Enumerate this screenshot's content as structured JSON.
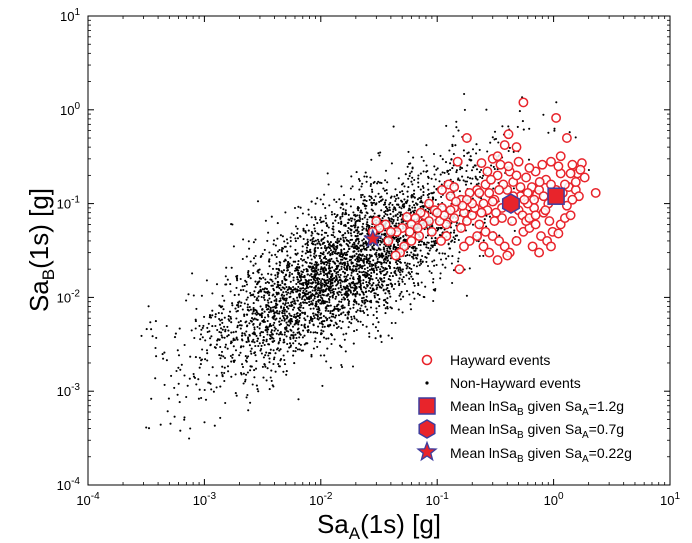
{
  "chart_data": {
    "type": "scatter",
    "x_scale": "log",
    "y_scale": "log",
    "xlim": [
      0.0001,
      10
    ],
    "ylim": [
      0.0001,
      10
    ],
    "x_ticks": [
      {
        "value": 0.0001,
        "base": "10",
        "exp": "-4"
      },
      {
        "value": 0.001,
        "base": "10",
        "exp": "-3"
      },
      {
        "value": 0.01,
        "base": "10",
        "exp": "-2"
      },
      {
        "value": 0.1,
        "base": "10",
        "exp": "-1"
      },
      {
        "value": 1,
        "base": "10",
        "exp": "0"
      },
      {
        "value": 10,
        "base": "10",
        "exp": "1"
      }
    ],
    "y_ticks": [
      {
        "value": 0.0001,
        "base": "10",
        "exp": "-4"
      },
      {
        "value": 0.001,
        "base": "10",
        "exp": "-3"
      },
      {
        "value": 0.01,
        "base": "10",
        "exp": "-2"
      },
      {
        "value": 0.1,
        "base": "10",
        "exp": "-1"
      },
      {
        "value": 1,
        "base": "10",
        "exp": "0"
      },
      {
        "value": 10,
        "base": "10",
        "exp": "1"
      }
    ],
    "xlabel": {
      "main": "Sa",
      "sub": "A",
      "rest": "(1s) [g]"
    },
    "ylabel": {
      "main": "Sa",
      "sub": "B",
      "rest": "(1s) [g]"
    },
    "grid": false,
    "legend_position": "bottom-right",
    "series": [
      {
        "name": "Hayward events",
        "marker": "open-circle",
        "color": "#e8242b",
        "points": [
          [
            0.55,
            1.2
          ],
          [
            0.41,
            0.55
          ],
          [
            0.38,
            0.42
          ],
          [
            0.3,
            0.3
          ],
          [
            0.33,
            0.32
          ],
          [
            1.05,
            0.82
          ],
          [
            1.3,
            0.5
          ],
          [
            0.18,
            0.5
          ],
          [
            0.24,
            0.27
          ],
          [
            0.48,
            0.4
          ],
          [
            0.15,
            0.28
          ],
          [
            0.33,
            0.2
          ],
          [
            0.45,
            0.17
          ],
          [
            0.58,
            0.19
          ],
          [
            0.7,
            0.22
          ],
          [
            0.86,
            0.18
          ],
          [
            1.15,
            0.21
          ],
          [
            1.45,
            0.26
          ],
          [
            1.75,
            0.27
          ],
          [
            2.3,
            0.13
          ],
          [
            0.26,
            0.16
          ],
          [
            0.22,
            0.14
          ],
          [
            0.19,
            0.13
          ],
          [
            0.16,
            0.11
          ],
          [
            0.13,
            0.12
          ],
          [
            0.11,
            0.09
          ],
          [
            0.095,
            0.085
          ],
          [
            0.085,
            0.1
          ],
          [
            0.078,
            0.075
          ],
          [
            0.072,
            0.08
          ],
          [
            0.065,
            0.07
          ],
          [
            0.06,
            0.06
          ],
          [
            0.055,
            0.072
          ],
          [
            0.05,
            0.055
          ],
          [
            0.045,
            0.05
          ],
          [
            0.04,
            0.05
          ],
          [
            0.036,
            0.06
          ],
          [
            0.032,
            0.055
          ],
          [
            0.03,
            0.065
          ],
          [
            0.028,
            0.05
          ],
          [
            0.12,
            0.06
          ],
          [
            0.14,
            0.07
          ],
          [
            0.16,
            0.055
          ],
          [
            0.18,
            0.065
          ],
          [
            0.2,
            0.075
          ],
          [
            0.23,
            0.06
          ],
          [
            0.26,
            0.05
          ],
          [
            0.3,
            0.045
          ],
          [
            0.34,
            0.04
          ],
          [
            0.38,
            0.035
          ],
          [
            0.42,
            0.03
          ],
          [
            0.33,
            0.025
          ],
          [
            0.28,
            0.03
          ],
          [
            0.4,
            0.028
          ],
          [
            0.48,
            0.04
          ],
          [
            0.55,
            0.05
          ],
          [
            0.62,
            0.055
          ],
          [
            0.7,
            0.06
          ],
          [
            0.78,
            0.045
          ],
          [
            0.88,
            0.04
          ],
          [
            0.98,
            0.05
          ],
          [
            1.1,
            0.048
          ],
          [
            0.92,
            0.065
          ],
          [
            0.82,
            0.08
          ],
          [
            0.68,
            0.09
          ],
          [
            0.6,
            0.1
          ],
          [
            0.52,
            0.12
          ],
          [
            0.36,
            0.09
          ],
          [
            0.31,
            0.11
          ],
          [
            0.28,
            0.13
          ],
          [
            0.25,
            0.1
          ],
          [
            0.21,
            0.09
          ],
          [
            0.17,
            0.08
          ],
          [
            0.14,
            0.09
          ],
          [
            0.105,
            0.065
          ],
          [
            0.09,
            0.05
          ],
          [
            0.07,
            0.045
          ],
          [
            0.06,
            0.04
          ],
          [
            0.052,
            0.035
          ],
          [
            0.048,
            0.03
          ],
          [
            0.044,
            0.028
          ],
          [
            0.155,
            0.02
          ],
          [
            0.72,
            0.125
          ],
          [
            0.65,
            0.15
          ],
          [
            0.75,
            0.14
          ],
          [
            0.82,
            0.12
          ],
          [
            0.9,
            0.1
          ],
          [
            1.0,
            0.11
          ],
          [
            1.2,
            0.13
          ],
          [
            1.35,
            0.15
          ],
          [
            1.55,
            0.14
          ],
          [
            1.65,
            0.12
          ],
          [
            1.3,
            0.095
          ],
          [
            1.45,
            0.11
          ],
          [
            1.55,
            0.17
          ],
          [
            1.25,
            0.16
          ],
          [
            1.05,
            0.14
          ],
          [
            0.95,
            0.16
          ],
          [
            0.76,
            0.17
          ],
          [
            1.6,
            0.21
          ],
          [
            1.85,
            0.19
          ],
          [
            1.7,
            0.23
          ],
          [
            0.42,
            0.22
          ],
          [
            0.4,
            0.14
          ],
          [
            0.37,
            0.16
          ],
          [
            0.46,
            0.1
          ],
          [
            0.5,
            0.085
          ],
          [
            0.54,
            0.075
          ],
          [
            0.58,
            0.065
          ],
          [
            0.62,
            0.07
          ],
          [
            0.44,
            0.065
          ],
          [
            0.36,
            0.07
          ],
          [
            0.32,
            0.08
          ],
          [
            0.27,
            0.085
          ],
          [
            0.24,
            0.08
          ],
          [
            0.2,
            0.1
          ],
          [
            0.18,
            0.11
          ],
          [
            0.165,
            0.095
          ],
          [
            0.145,
            0.105
          ],
          [
            0.13,
            0.085
          ],
          [
            0.115,
            0.075
          ],
          [
            0.1,
            0.08
          ],
          [
            0.085,
            0.065
          ],
          [
            0.075,
            0.06
          ],
          [
            0.068,
            0.055
          ],
          [
            0.058,
            0.05
          ],
          [
            0.038,
            0.04
          ],
          [
            0.29,
            0.18
          ],
          [
            0.27,
            0.22
          ],
          [
            0.35,
            0.26
          ],
          [
            0.5,
            0.28
          ],
          [
            0.62,
            0.24
          ],
          [
            0.95,
            0.28
          ],
          [
            1.1,
            0.25
          ],
          [
            0.8,
            0.26
          ],
          [
            0.45,
            0.12
          ],
          [
            0.52,
            0.15
          ],
          [
            0.6,
            0.13
          ],
          [
            0.68,
            0.11
          ],
          [
            0.85,
            0.085
          ],
          [
            0.7,
            0.075
          ],
          [
            0.66,
            0.035
          ],
          [
            0.75,
            0.03
          ],
          [
            0.95,
            0.035
          ],
          [
            1.15,
            0.06
          ],
          [
            1.25,
            0.07
          ],
          [
            1.4,
            0.075
          ],
          [
            0.22,
            0.045
          ],
          [
            0.19,
            0.04
          ],
          [
            0.17,
            0.035
          ],
          [
            0.25,
            0.035
          ],
          [
            0.12,
            0.045
          ],
          [
            0.108,
            0.04
          ],
          [
            0.23,
            0.13
          ],
          [
            0.41,
            0.25
          ],
          [
            1.15,
            0.32
          ],
          [
            0.34,
            0.14
          ],
          [
            1.4,
            0.21
          ],
          [
            0.125,
            0.16
          ],
          [
            0.11,
            0.14
          ],
          [
            0.14,
            0.15
          ],
          [
            0.3,
            0.105
          ],
          [
            0.56,
            0.11
          ],
          [
            0.48,
            0.2
          ],
          [
            0.31,
            0.065
          ]
        ]
      },
      {
        "name": "Non-Hayward events",
        "marker": "dot",
        "color": "#000000",
        "generated": {
          "count": 3600,
          "x_log10_mean": -1.8,
          "x_log10_sd": 0.62,
          "y_log10_slope": 0.72,
          "y_log10_intercept": -0.4,
          "y_log10_sd": 0.36,
          "seed": 20240607
        }
      },
      {
        "name": "Mean lnSa_B given Sa_A=1.2g",
        "marker": "square",
        "color": "#e8242b",
        "edge_color": "#3d3d9e",
        "points": [
          [
            1.05,
            0.12
          ]
        ]
      },
      {
        "name": "Mean lnSa_B given Sa_A=0.7g",
        "marker": "hexagon",
        "color": "#e8242b",
        "edge_color": "#3d3d9e",
        "points": [
          [
            0.43,
            0.1
          ]
        ]
      },
      {
        "name": "Mean lnSa_B given Sa_A=0.22g",
        "marker": "star",
        "color": "#e8242b",
        "edge_color": "#3d3d9e",
        "points": [
          [
            0.028,
            0.042
          ]
        ]
      }
    ],
    "legend": [
      {
        "marker": "open-circle",
        "text": "Hayward events"
      },
      {
        "marker": "dot",
        "text": "Non-Hayward events"
      },
      {
        "marker": "square",
        "pre": "Mean lnSa",
        "sub1": "B",
        "mid": " given Sa",
        "sub2": "A",
        "post": "=1.2g"
      },
      {
        "marker": "hexagon",
        "pre": "Mean lnSa",
        "sub1": "B",
        "mid": " given Sa",
        "sub2": "A",
        "post": "=0.7g"
      },
      {
        "marker": "star",
        "pre": "Mean lnSa",
        "sub1": "B",
        "mid": " given Sa",
        "sub2": "A",
        "post": "=0.22g"
      }
    ]
  }
}
